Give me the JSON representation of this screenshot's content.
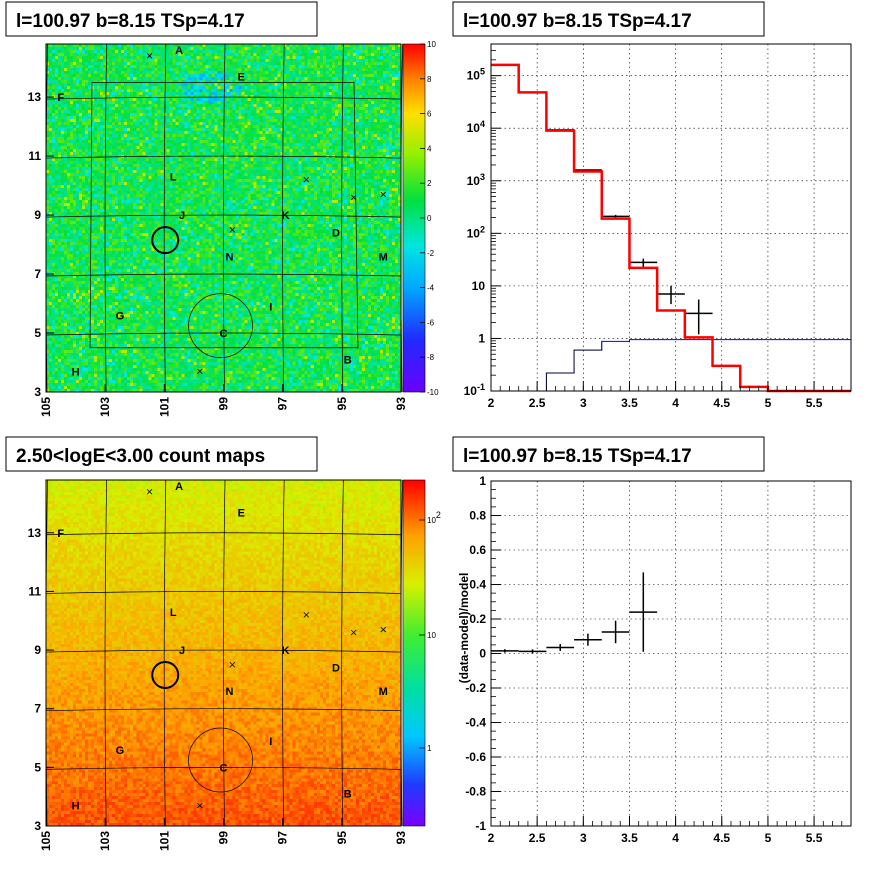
{
  "panels": {
    "map_top_title": "l=100.97 b=8.15 TSp=4.17",
    "spectrum_title": "l=100.97 b=8.15 TSp=4.17",
    "map_bottom_title": "2.50<logE<3.00 count maps",
    "ratio_title": "l=100.97 b=8.15 TSp=4.17"
  },
  "colors": {
    "data": "#000000",
    "model": "#ff0000",
    "background_model": "#0000ff"
  },
  "chart_data": [
    {
      "type": "heatmap",
      "name": "residual-significance-map",
      "title": "l=100.97 b=8.15 TSp=4.17",
      "x_ticks": [
        "105",
        "103",
        "101",
        "99",
        "97",
        "95",
        "93"
      ],
      "y_ticks": [
        "3",
        "5",
        "7",
        "9",
        "11",
        "13"
      ],
      "xlim": [
        105,
        93
      ],
      "ylim": [
        3,
        14.8
      ],
      "z_ticks": [
        "10",
        "8",
        "6",
        "4",
        "2",
        "0",
        "-2",
        "-4",
        "-6",
        "-8",
        "-10"
      ],
      "zlim": [
        -10,
        10
      ],
      "source_labels": [
        "A",
        "B",
        "C",
        "D",
        "E",
        "F",
        "G",
        "H",
        "I",
        "J",
        "K",
        "L",
        "M",
        "N"
      ]
    },
    {
      "type": "line",
      "name": "energy-spectrum",
      "title": "l=100.97 b=8.15 TSp=4.17",
      "x_ticks": [
        "2",
        "2.5",
        "3",
        "3.5",
        "4",
        "4.5",
        "5",
        "5.5"
      ],
      "y_ticks": [
        "10^-1",
        "1",
        "10",
        "10^2",
        "10^3",
        "10^4",
        "10^5"
      ],
      "xlim": [
        2,
        5.9
      ],
      "ylim": [
        0.1,
        400000
      ],
      "yscale": "log",
      "grid": true,
      "model_steps": {
        "edges": [
          2,
          2.3,
          2.6,
          2.9,
          3.2,
          3.5,
          3.8,
          4.1,
          4.4,
          4.7,
          5.0,
          5.3,
          5.9
        ],
        "values": [
          160000,
          48000,
          9000,
          1500,
          190,
          22,
          3.4,
          1.05,
          0.3,
          0.12,
          0.1,
          0.1
        ]
      },
      "background_steps": {
        "edges": [
          2.6,
          2.9,
          3.2,
          3.5,
          5.9
        ],
        "values": [
          0.22,
          0.6,
          0.88,
          0.95
        ]
      },
      "data_points": {
        "x": [
          2.15,
          2.45,
          2.75,
          3.05,
          3.35,
          3.65,
          3.95,
          4.25
        ],
        "xerr": 0.15,
        "y": [
          160000,
          48000,
          9300,
          1600,
          210,
          28,
          7,
          3
        ],
        "ylo": [
          159000,
          47700,
          9200,
          1560,
          196,
          23,
          4.5,
          1.2
        ],
        "yhi": [
          161000,
          48300,
          9400,
          1640,
          224,
          33,
          10,
          5.5
        ]
      }
    },
    {
      "type": "heatmap",
      "name": "count-map",
      "title": "2.50<logE<3.00 count maps",
      "x_ticks": [
        "105",
        "103",
        "101",
        "99",
        "97",
        "95",
        "93"
      ],
      "y_ticks": [
        "3",
        "5",
        "7",
        "9",
        "11",
        "13"
      ],
      "xlim": [
        105,
        93
      ],
      "ylim": [
        3,
        14.8
      ],
      "z_ticks": [
        "10^2",
        "10",
        "1"
      ],
      "zscale": "log",
      "source_labels": [
        "A",
        "B",
        "C",
        "D",
        "E",
        "F",
        "G",
        "H",
        "I",
        "J",
        "K",
        "L",
        "M",
        "N"
      ]
    },
    {
      "type": "scatter",
      "name": "residual-ratio",
      "title": "l=100.97 b=8.15 TSp=4.17",
      "ylabel": "(data-model)/model",
      "x_ticks": [
        "2",
        "2.5",
        "3",
        "3.5",
        "4",
        "4.5",
        "5",
        "5.5"
      ],
      "y_ticks": [
        "1",
        "0.8",
        "0.6",
        "0.4",
        "0.2",
        "0",
        "-0.2",
        "-0.4",
        "-0.6",
        "-0.8",
        "-1"
      ],
      "xlim": [
        2,
        5.9
      ],
      "ylim": [
        -1,
        1
      ],
      "grid": true,
      "x": [
        2.15,
        2.45,
        2.75,
        3.05,
        3.35,
        3.65
      ],
      "xerr": 0.15,
      "y": [
        0.015,
        0.012,
        0.035,
        0.08,
        0.125,
        0.24
      ],
      "yerr": [
        0.01,
        0.012,
        0.02,
        0.035,
        0.065,
        0.23
      ]
    }
  ]
}
